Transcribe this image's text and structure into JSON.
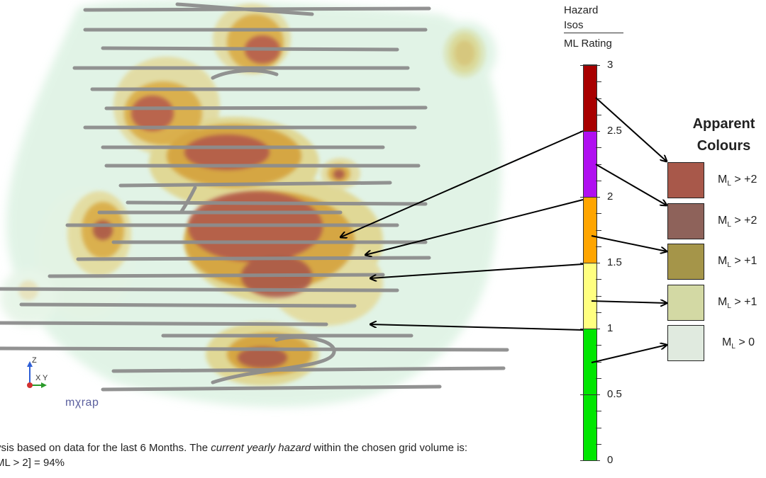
{
  "legend": {
    "title_line1": "Hazard",
    "title_line2": "Isos",
    "title_line3": "ML Rating",
    "scale_labels": [
      "3",
      "2.5",
      "2",
      "1.5",
      "1",
      "0.5",
      "0"
    ],
    "scale_min": 0,
    "scale_max": 3,
    "bands": [
      {
        "from": 2.5,
        "to": 3.0,
        "color": "#a80000"
      },
      {
        "from": 2.0,
        "to": 2.5,
        "color": "#b010f0"
      },
      {
        "from": 1.5,
        "to": 2.0,
        "color": "#ffa500"
      },
      {
        "from": 1.0,
        "to": 1.5,
        "color": "#ffff80"
      },
      {
        "from": 0.0,
        "to": 1.0,
        "color": "#00e600"
      }
    ]
  },
  "apparent": {
    "heading": "Apparent Colours",
    "items": [
      {
        "label_prefix": "M",
        "sub": "L",
        "label_suffix": " > +2",
        "color": "#a8584a"
      },
      {
        "label_prefix": "M",
        "sub": "L",
        "label_suffix": " > +2",
        "color": "#8e625a"
      },
      {
        "label_prefix": "M",
        "sub": "L",
        "label_suffix": " > +1",
        "color": "#a59549"
      },
      {
        "label_prefix": "M",
        "sub": "L",
        "label_suffix": " > +1",
        "color": "#d3d9a4"
      },
      {
        "label_prefix": "M",
        "sub": "L",
        "label_suffix": " > 0",
        "color": "#e0eadf"
      }
    ]
  },
  "footer": {
    "line1_before": "ysis based on data for the last 6 Months. The ",
    "line1_emph": "current yearly hazard",
    "line1_after": " within the chosen grid volume is:",
    "line2": "ML > 2] = 94%"
  },
  "axes": {
    "z": "Z",
    "x": "X",
    "y": "Y"
  },
  "logo": "mχrap"
}
